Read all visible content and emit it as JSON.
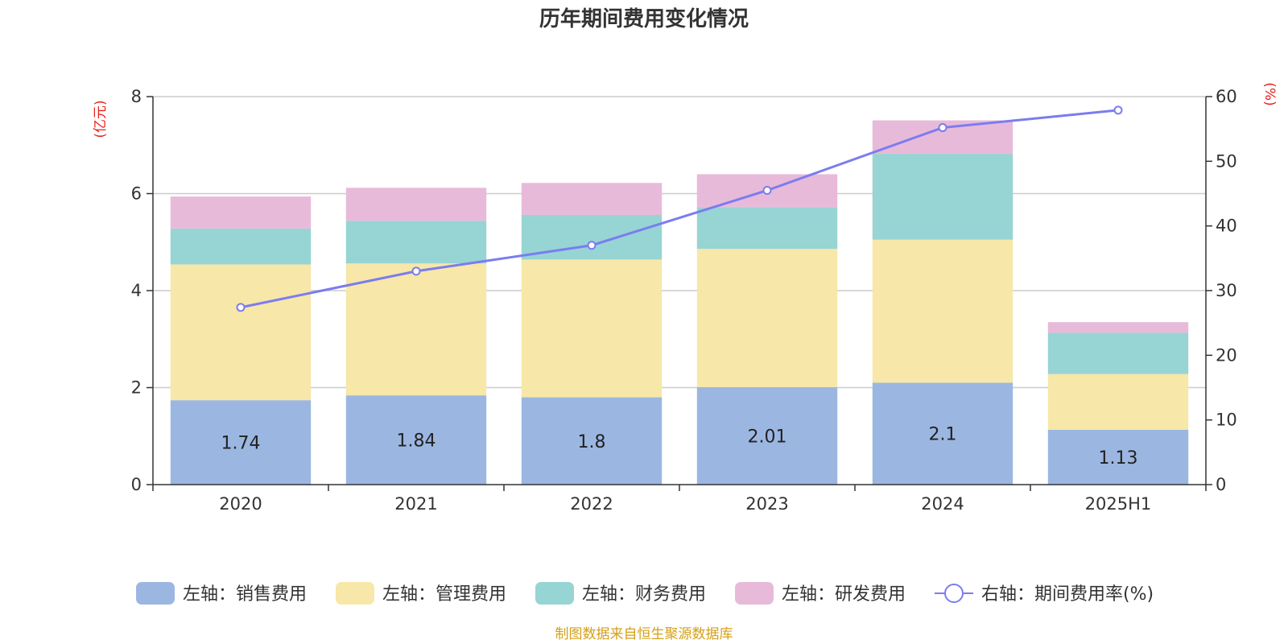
{
  "chart_data": {
    "type": "bar",
    "title": "历年期间费用变化情况",
    "categories": [
      "2020",
      "2021",
      "2022",
      "2023",
      "2024",
      "2025H1"
    ],
    "left_axis": {
      "unit": "(亿元)",
      "ylim": [
        0,
        8
      ],
      "ticks": [
        "0",
        "2",
        "4",
        "6",
        "8"
      ]
    },
    "right_axis": {
      "unit": "(%)",
      "ylim": [
        0,
        60
      ],
      "ticks": [
        "0",
        "10",
        "20",
        "30",
        "40",
        "50",
        "60"
      ]
    },
    "stacked": true,
    "grid": true,
    "legend_position": "bottom",
    "series": [
      {
        "name": "左轴：销售费用",
        "axis": "left",
        "type": "bar",
        "color": "#9bb7e1",
        "values": [
          1.74,
          1.84,
          1.8,
          2.01,
          2.1,
          1.13
        ],
        "data_labels": [
          "1.74",
          "1.84",
          "1.8",
          "2.01",
          "2.1",
          "1.13"
        ]
      },
      {
        "name": "左轴：管理费用",
        "axis": "left",
        "type": "bar",
        "color": "#f7e7a8",
        "values": [
          2.8,
          2.72,
          2.84,
          2.85,
          2.95,
          1.15
        ]
      },
      {
        "name": "左轴：财务费用",
        "axis": "left",
        "type": "bar",
        "color": "#97d4d4",
        "values": [
          0.74,
          0.88,
          0.92,
          0.86,
          1.77,
          0.85
        ]
      },
      {
        "name": "左轴：研发费用",
        "axis": "left",
        "type": "bar",
        "color": "#e8bad9",
        "values": [
          0.66,
          0.68,
          0.66,
          0.68,
          0.69,
          0.22
        ]
      },
      {
        "name": "右轴：期间费用率(%)",
        "axis": "right",
        "type": "line",
        "color": "#7b7cf0",
        "values": [
          27.4,
          33.0,
          37.0,
          45.5,
          55.2,
          57.9
        ]
      }
    ]
  },
  "source_note": "制图数据来自恒生聚源数据库"
}
